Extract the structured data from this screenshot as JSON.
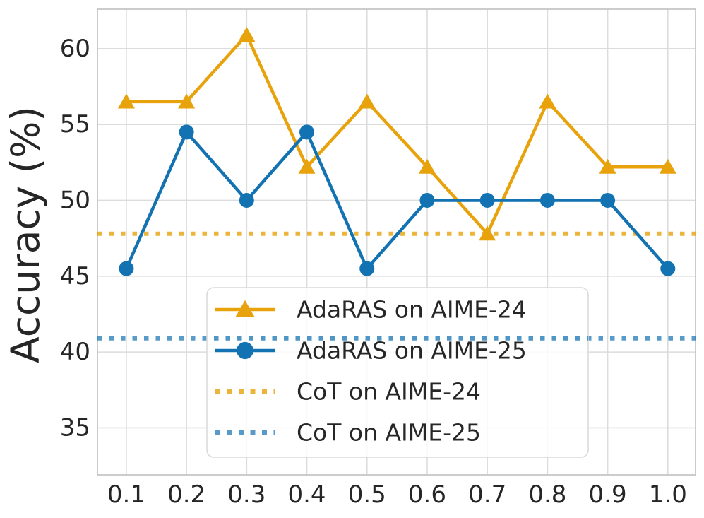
{
  "chart_data": {
    "type": "line",
    "title": "",
    "xlabel": "",
    "ylabel": "Accuracy (%)",
    "x": [
      0.1,
      0.2,
      0.3,
      0.4,
      0.5,
      0.6,
      0.7,
      0.8,
      0.9,
      1.0
    ],
    "x_tick_labels": [
      "0.1",
      "0.2",
      "0.3",
      "0.4",
      "0.5",
      "0.6",
      "0.7",
      "0.8",
      "0.9",
      "1.0"
    ],
    "y_ticks": [
      35,
      40,
      45,
      50,
      55,
      60
    ],
    "y_tick_labels": [
      "35",
      "40",
      "45",
      "50",
      "55",
      "60"
    ],
    "xlim": [
      0.052,
      1.046
    ],
    "ylim": [
      31.9,
      62.6
    ],
    "grid": true,
    "legend_position": "lower center, inside axes",
    "series": [
      {
        "name": "AdaRAS on AIME-24",
        "kind": "line",
        "marker": "triangle-up",
        "color": "#E8A20B",
        "opacity": 1,
        "values": [
          56.5,
          56.5,
          60.9,
          52.2,
          56.5,
          52.2,
          47.8,
          56.5,
          52.2,
          52.2
        ]
      },
      {
        "name": "AdaRAS on AIME-25",
        "kind": "line",
        "marker": "circle",
        "color": "#1272B2",
        "opacity": 1,
        "values": [
          45.5,
          54.5,
          50.0,
          54.5,
          45.5,
          50.0,
          50.0,
          50.0,
          50.0,
          45.5
        ]
      },
      {
        "name": "CoT on AIME-24",
        "kind": "hline",
        "linestyle": "dotted",
        "color": "#E8A20B",
        "opacity": 0.8,
        "value": 47.8
      },
      {
        "name": "CoT on AIME-25",
        "kind": "hline",
        "linestyle": "dotted",
        "color": "#1272B2",
        "opacity": 0.7,
        "value": 40.9
      }
    ],
    "colors": {
      "text": "#262626",
      "grid": "#dcdcdc",
      "spine": "#c6c6c6",
      "background": "#ffffff",
      "legend_border": "#d9d9d9",
      "legend_fill": "#ffffff"
    }
  }
}
